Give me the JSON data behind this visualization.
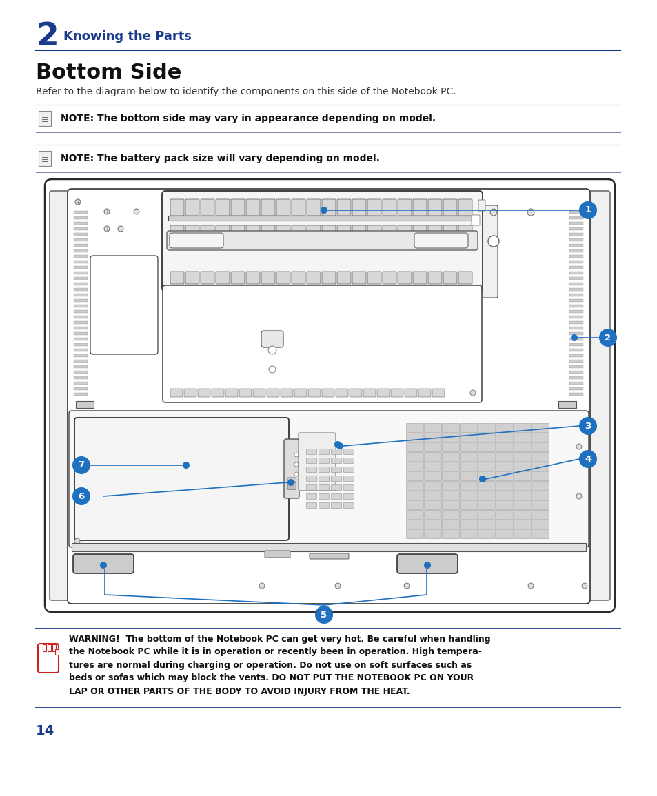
{
  "chapter_num": "2",
  "chapter_title": "Knowing the Parts",
  "section_title": "Bottom Side",
  "subtitle": "Refer to the diagram below to identify the components on this side of the Notebook PC.",
  "note1": "NOTE: The bottom side may vary in appearance depending on model.",
  "note2": "NOTE: The battery pack size will vary depending on model.",
  "warning_lines": [
    "WARNING!  The bottom of the Notebook PC can get very hot. Be careful when handling",
    "the Notebook PC while it is in operation or recently been in operation. High tempera-",
    "tures are normal during charging or operation. Do not use on soft surfaces such as",
    "beds or sofas which may block the vents. DO NOT PUT THE NOTEBOOK PC ON YOUR",
    "LAP OR OTHER PARTS OF THE BODY TO AVOID INJURY FROM THE HEAT."
  ],
  "page_num": "14",
  "blue_color": "#1a3a8c",
  "label_blue": "#2070c0",
  "line_color": "#2070c0",
  "bg_color": "#ffffff",
  "text_color": "#111111"
}
